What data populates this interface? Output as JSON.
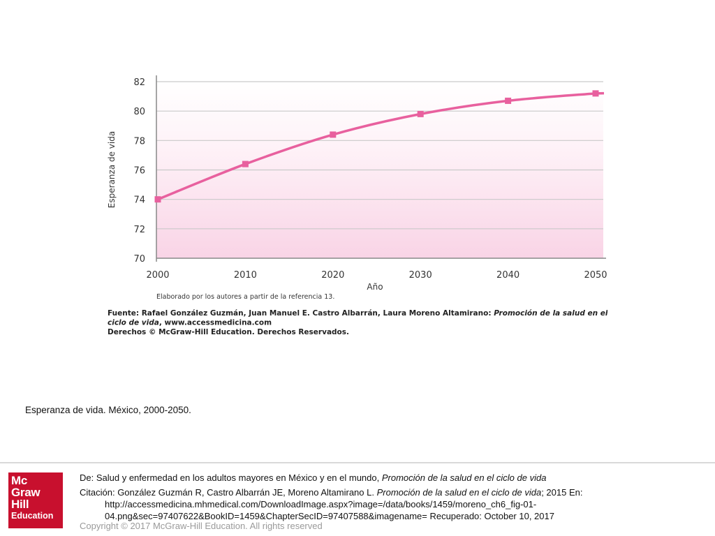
{
  "chart_data": {
    "type": "line",
    "x": [
      2000,
      2010,
      2020,
      2030,
      2040,
      2050
    ],
    "series": [
      {
        "values": [
          74.0,
          76.4,
          78.4,
          79.8,
          80.7,
          81.2
        ],
        "color": "#e8609e"
      }
    ],
    "ylabel": "Esperanza de vida",
    "xlabel": "Año",
    "xlim": [
      2000,
      2050
    ],
    "ylim": [
      70,
      82
    ],
    "yticks": [
      70,
      72,
      74,
      76,
      78,
      80,
      82
    ],
    "grid": true,
    "note": "Elaborado por los autores a partir de la referencia 13.",
    "source_lines": [
      [
        "Fuente: Rafael González Guzmán, Juan Manuel E. Castro Albarrán, Laura Moreno Altamirano: ",
        "Promoción de la salud en el"
      ],
      [
        "ciclo de vida",
        ", www.accessmedicina.com"
      ],
      [
        "Derechos © McGraw-Hill Education. Derechos Reservados.",
        ""
      ]
    ]
  },
  "caption": "Esperanza de vida. México, 2000-2050.",
  "logo": {
    "line1": "Mc",
    "line2": "Graw",
    "line3": "Hill",
    "line4": "Education"
  },
  "citation": {
    "from_prefix": "De: Salud y enfermedad en los adultos mayores en México y en el mundo, ",
    "from_title": "Promoción de la salud en el ciclo de vida",
    "cite_prefix": "Citación: González Guzmán R, Castro Albarrán JE, Moreno Altamirano L. ",
    "cite_title": "Promoción de la salud en el ciclo de vida",
    "cite_suffix": "; 2015 En: http://accessmedicina.mhmedical.com/DownloadImage.aspx?image=/data/books/1459/moreno_ch6_fig-01-04.png&sec=97407622&BookID=1459&ChapterSecID=97407588&imagename= Recuperado: October 10, 2017"
  },
  "copyright": "Copyright © 2017 McGraw-Hill Education. All rights reserved",
  "colors": {
    "line": "#e8609e",
    "gradient_bottom": "#f9d4e6",
    "logo": "#c8102e"
  }
}
